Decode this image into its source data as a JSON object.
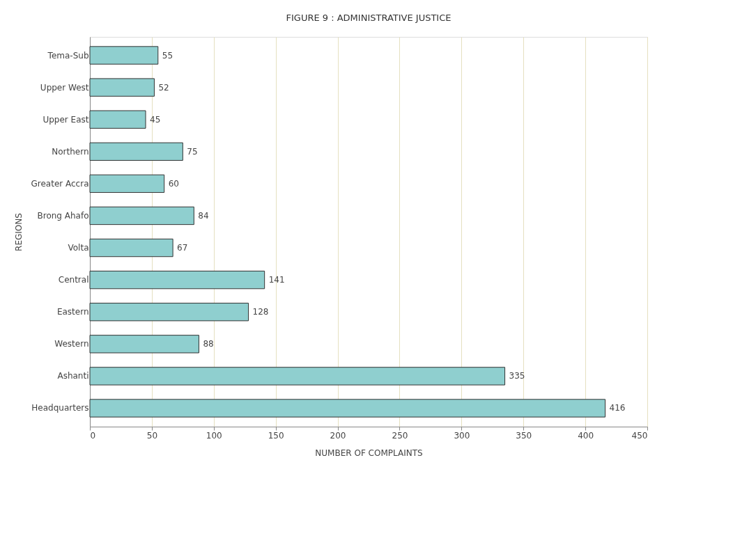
{
  "chart_data": {
    "type": "bar",
    "orientation": "horizontal",
    "title": "FIGURE 9 : ADMINISTRATIVE JUSTICE",
    "xlabel": "NUMBER OF COMPLAINTS",
    "ylabel": "REGIONS",
    "categories": [
      "Tema-Sub",
      "Upper West",
      "Upper East",
      "Northern",
      "Greater Accra",
      "Brong Ahafo",
      "Volta",
      "Central",
      "Eastern",
      "Western",
      "Ashanti",
      "Headquarters"
    ],
    "values": [
      55,
      52,
      45,
      75,
      60,
      84,
      67,
      141,
      128,
      88,
      335,
      416
    ],
    "color": "#8fcfcf",
    "xlim": [
      0,
      450
    ],
    "xticks": [
      0,
      50,
      100,
      150,
      200,
      250,
      300,
      350,
      400,
      450
    ],
    "grid": "x",
    "data_labels": true
  }
}
